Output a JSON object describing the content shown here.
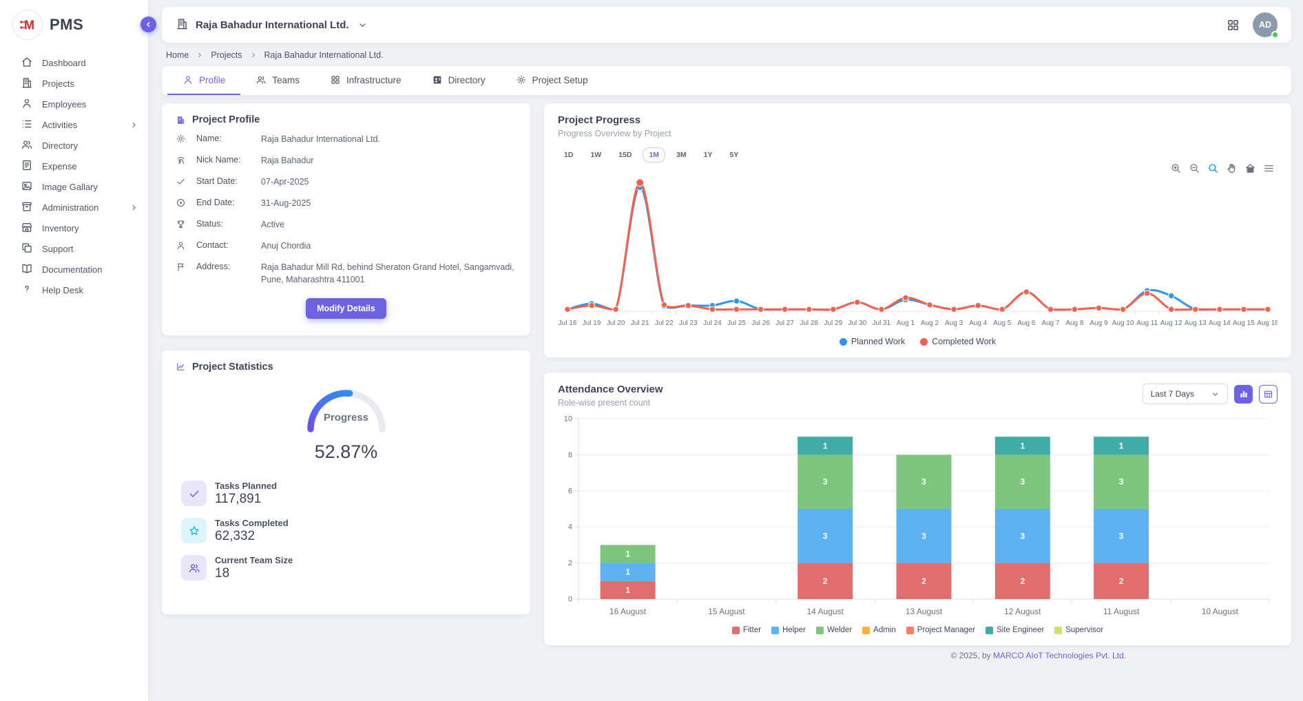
{
  "brand": {
    "app_name": "PMS",
    "logo_letter": "M"
  },
  "sidebar": {
    "items": [
      {
        "label": "Dashboard",
        "icon": "home-icon",
        "expandable": false
      },
      {
        "label": "Projects",
        "icon": "building-icon",
        "expandable": false
      },
      {
        "label": "Employees",
        "icon": "person-icon",
        "expandable": false
      },
      {
        "label": "Activities",
        "icon": "list-icon",
        "expandable": true
      },
      {
        "label": "Directory",
        "icon": "people-icon",
        "expandable": false
      },
      {
        "label": "Expense",
        "icon": "receipt-icon",
        "expandable": false
      },
      {
        "label": "Image Gallary",
        "icon": "image-icon",
        "expandable": false
      },
      {
        "label": "Administration",
        "icon": "archive-icon",
        "expandable": true
      },
      {
        "label": "Inventory",
        "icon": "store-icon",
        "expandable": false
      },
      {
        "label": "Support",
        "icon": "copy-icon",
        "expandable": false
      },
      {
        "label": "Documentation",
        "icon": "book-icon",
        "expandable": false
      },
      {
        "label": "Help Desk",
        "icon": "question-icon",
        "expandable": false
      }
    ]
  },
  "header": {
    "company_name": "Raja Bahadur International Ltd.",
    "avatar_initials": "AD"
  },
  "breadcrumb": {
    "items": [
      "Home",
      "Projects",
      "Raja Bahadur International Ltd."
    ]
  },
  "tabs": [
    {
      "label": "Profile",
      "icon": "person-icon",
      "active": true
    },
    {
      "label": "Teams",
      "icon": "people-icon",
      "active": false
    },
    {
      "label": "Infrastructure",
      "icon": "grid-icon",
      "active": false
    },
    {
      "label": "Directory",
      "icon": "id-card-icon",
      "active": false
    },
    {
      "label": "Project Setup",
      "icon": "gear-icon",
      "active": false
    }
  ],
  "profile_card": {
    "title": "Project Profile",
    "fields": [
      {
        "icon": "gear-icon",
        "label": "Name:",
        "value": "Raja Bahadur International Ltd."
      },
      {
        "icon": "signature-icon",
        "label": "Nick Name:",
        "value": "Raja Bahadur"
      },
      {
        "icon": "check-icon",
        "label": "Start Date:",
        "value": "07-Apr-2025"
      },
      {
        "icon": "circle-dot-icon",
        "label": "End Date:",
        "value": "31-Aug-2025"
      },
      {
        "icon": "trophy-icon",
        "label": "Status:",
        "value": "Active"
      },
      {
        "icon": "person-icon",
        "label": "Contact:",
        "value": "Anuj Chordia"
      },
      {
        "icon": "flag-icon",
        "label": "Address:",
        "value": "Raja Bahadur Mill Rd, behind Sheraton Grand Hotel, Sangamvadi, Pune, Maharashtra 411001"
      }
    ],
    "button_label": "Modify Details"
  },
  "statistics_card": {
    "title": "Project Statistics",
    "gauge": {
      "label": "Progress",
      "display_value": "52.87%",
      "percent": 52.87
    },
    "items": [
      {
        "icon": "check-icon",
        "label": "Tasks Planned",
        "value": "117,891",
        "accent": "#6e62e4",
        "bg": "#e9e6fb"
      },
      {
        "icon": "star-icon",
        "label": "Tasks Completed",
        "value": "62,332",
        "accent": "#1fc0de",
        "bg": "#def4fb"
      },
      {
        "icon": "people-icon",
        "label": "Current Team Size",
        "value": "18",
        "accent": "#6e62e4",
        "bg": "#e9e6fb"
      }
    ]
  },
  "chart_data": [
    {
      "id": "project-progress",
      "type": "line",
      "title": "Project Progress",
      "subtitle": "Progress Overview by Project",
      "ranges": {
        "options": [
          "1D",
          "1W",
          "15D",
          "1M",
          "3M",
          "1Y",
          "5Y"
        ],
        "active": "1M"
      },
      "toolbar": [
        "zoom-in-icon",
        "zoom-out-icon",
        "selection-zoom-icon",
        "pan-icon",
        "reset-home-icon",
        "menu-icon"
      ],
      "x": [
        "Jul 18",
        "Jul 19",
        "Jul 20",
        "Jul 21",
        "Jul 22",
        "Jul 23",
        "Jul 24",
        "Jul 25",
        "Jul 26",
        "Jul 27",
        "Jul 28",
        "Jul 29",
        "Jul 30",
        "Jul 31",
        "Aug 1",
        "Aug 2",
        "Aug 3",
        "Aug 4",
        "Aug 5",
        "Aug 6",
        "Aug 7",
        "Aug 8",
        "Aug 9",
        "Aug 10",
        "Aug 11",
        "Aug 12",
        "Aug 13",
        "Aug 14",
        "Aug 15",
        "Aug 16"
      ],
      "series": [
        {
          "name": "Planned Work",
          "color": "#2d96f2",
          "values": [
            1.5,
            6,
            1.5,
            97,
            4,
            4.5,
            4.5,
            8,
            1.5,
            1.5,
            1.5,
            1.5,
            7,
            1.5,
            9,
            5,
            1.5,
            4.5,
            1.5,
            15,
            1.5,
            1.5,
            2.5,
            1.5,
            16,
            12,
            1.5,
            1.5,
            1.5,
            1.5
          ]
        },
        {
          "name": "Completed Work",
          "color": "#f4614c",
          "values": [
            1.5,
            4.5,
            1.5,
            100,
            5,
            4.5,
            1.5,
            1.5,
            1.5,
            1.5,
            1.5,
            1.5,
            7,
            1.5,
            10.5,
            5,
            1.5,
            4.5,
            1.5,
            15,
            1.5,
            1.5,
            2.5,
            1.5,
            14,
            1.5,
            1.5,
            1.5,
            1.5,
            1.5
          ]
        }
      ],
      "ylim": [
        0,
        105
      ],
      "grid": false,
      "legend_position": "bottom"
    },
    {
      "id": "attendance-overview",
      "type": "bar",
      "stacked": true,
      "title": "Attendance Overview",
      "subtitle": "Role-wise present count",
      "filter_selected": "Last 7 Days",
      "categories": [
        "16 August",
        "15 August",
        "14 August",
        "13 August",
        "12 August",
        "11 August",
        "10 August"
      ],
      "series": [
        {
          "name": "Fitter",
          "color": "#e06e6e",
          "values": [
            1,
            0,
            2,
            2,
            2,
            2,
            0
          ]
        },
        {
          "name": "Helper",
          "color": "#5fb2f2",
          "values": [
            1,
            0,
            3,
            3,
            3,
            3,
            0
          ]
        },
        {
          "name": "Welder",
          "color": "#7ec580",
          "values": [
            1,
            0,
            3,
            3,
            3,
            3,
            0
          ]
        },
        {
          "name": "Admin",
          "color": "#f9b242",
          "values": [
            0,
            0,
            0,
            0,
            0,
            0,
            0
          ]
        },
        {
          "name": "Project Manager",
          "color": "#f47f62",
          "values": [
            0,
            0,
            0,
            0,
            0,
            0,
            0
          ]
        },
        {
          "name": "Site Engineer",
          "color": "#3fada6",
          "values": [
            0,
            0,
            1,
            0,
            1,
            1,
            0
          ]
        },
        {
          "name": "Supervisor",
          "color": "#d3e06b",
          "values": [
            0,
            0,
            0,
            0,
            0,
            0,
            0
          ]
        }
      ],
      "ylim": [
        0,
        10
      ],
      "yticks": [
        0,
        2,
        4,
        6,
        8,
        10
      ],
      "grid": true,
      "legend_position": "bottom"
    }
  ],
  "footer": {
    "copyright": "© 2025, by",
    "company_link": "MARCO AIoT Technologies Pvt. Ltd."
  },
  "colors": {
    "accent": "#6e62e4",
    "planned": "#2d96f2",
    "completed": "#f4614c",
    "logo_red": "#d8232a"
  }
}
